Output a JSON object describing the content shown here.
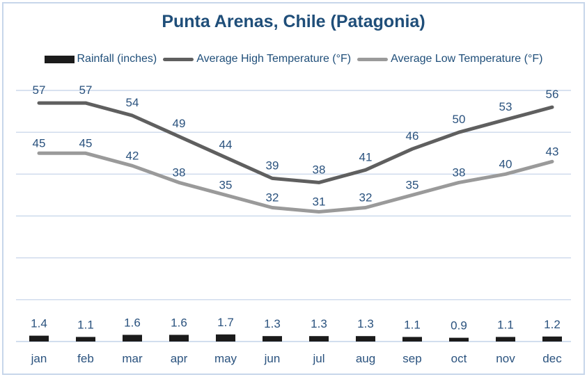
{
  "title": "Punta Arenas, Chile (Patagonia)",
  "colors": {
    "text_navy": "#1f4e79",
    "label_navy": "#2a527e",
    "grid": "#ccd9eb",
    "axis": "#c3d3e8",
    "border": "#c7d6ea",
    "background": "#ffffff",
    "bar": "#1b1b1b",
    "high_line": "#5f5f5f",
    "low_line": "#9a9a9a"
  },
  "legend": {
    "items": [
      {
        "label": "Rainfall (inches)",
        "swatch": "bar",
        "color": "#1b1b1b"
      },
      {
        "label": "Average High Temperature (°F)",
        "swatch": "line",
        "color": "#5f5f5f"
      },
      {
        "label": "Average Low Temperature (°F)",
        "swatch": "line",
        "color": "#9a9a9a"
      }
    ]
  },
  "chart_data": {
    "type": "combo",
    "title": "Punta Arenas, Chile (Patagonia)",
    "categories": [
      "jan",
      "feb",
      "mar",
      "apr",
      "may",
      "jun",
      "jul",
      "aug",
      "sep",
      "oct",
      "nov",
      "dec"
    ],
    "series": [
      {
        "name": "Rainfall (inches)",
        "type": "bar",
        "color": "#1b1b1b",
        "values": [
          1.4,
          1.1,
          1.6,
          1.6,
          1.7,
          1.3,
          1.3,
          1.3,
          1.1,
          0.9,
          1.1,
          1.2
        ]
      },
      {
        "name": "Average High Temperature (°F)",
        "type": "line",
        "color": "#5f5f5f",
        "values": [
          57,
          57,
          54,
          49,
          44,
          39,
          38,
          41,
          46,
          50,
          53,
          56
        ]
      },
      {
        "name": "Average Low Temperature (°F)",
        "type": "line",
        "color": "#9a9a9a",
        "values": [
          45,
          45,
          42,
          38,
          35,
          32,
          31,
          32,
          35,
          38,
          40,
          43
        ]
      }
    ],
    "xlabel": "",
    "ylabel": "",
    "ylim": [
      0,
      60
    ],
    "gridline_step": 10,
    "grid": true,
    "y_axis_visible": false,
    "data_labels": true,
    "legend_position": "top"
  }
}
